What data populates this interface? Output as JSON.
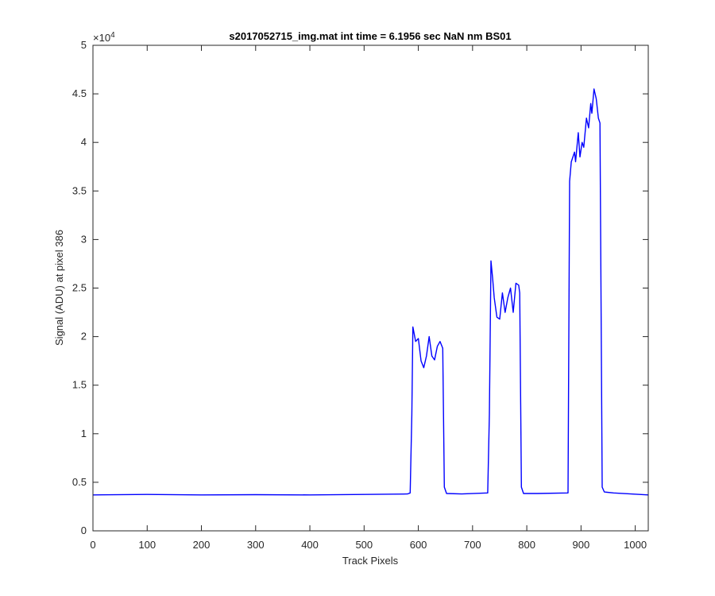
{
  "chart_data": {
    "type": "line",
    "title": "s2017052715_img.mat int time = 6.1956 sec  NaN nm BS01",
    "xlabel": "Track Pixels",
    "ylabel": "Signal (ADU) at pixel 386",
    "xlim": [
      0,
      1024
    ],
    "ylim": [
      0,
      50000
    ],
    "x_ticks": [
      0,
      100,
      200,
      300,
      400,
      500,
      600,
      700,
      800,
      900,
      1000
    ],
    "y_ticks": [
      0,
      0.5,
      1,
      1.5,
      2,
      2.5,
      3,
      3.5,
      4,
      4.5,
      5
    ],
    "y_exponent": "×10",
    "y_exponent_power": "4",
    "grid": false,
    "line_color": "#0000ff",
    "series": [
      {
        "x": [
          0,
          100,
          200,
          300,
          400,
          500,
          580,
          585,
          588,
          590,
          595,
          600,
          605,
          610,
          615,
          620,
          625,
          630,
          635,
          640,
          645,
          648,
          652,
          680,
          728,
          731,
          734,
          737,
          740,
          745,
          750,
          755,
          760,
          765,
          770,
          775,
          780,
          785,
          787,
          790,
          794,
          820,
          876,
          879,
          882,
          888,
          890,
          895,
          898,
          902,
          905,
          910,
          914,
          918,
          920,
          924,
          928,
          932,
          935,
          939,
          943,
          960,
          1024
        ],
        "y": [
          3700,
          3750,
          3700,
          3720,
          3700,
          3750,
          3800,
          3900,
          12000,
          21000,
          19500,
          19800,
          17500,
          16800,
          18000,
          20000,
          18000,
          17600,
          19000,
          19500,
          18800,
          4500,
          3850,
          3800,
          3900,
          12000,
          27800,
          26000,
          24000,
          22000,
          21800,
          24500,
          22500,
          24000,
          25000,
          22500,
          25500,
          25300,
          24500,
          4500,
          3850,
          3850,
          3900,
          36000,
          38000,
          39000,
          38000,
          41000,
          38500,
          40000,
          39500,
          42500,
          41500,
          44000,
          43000,
          45500,
          44500,
          42500,
          42000,
          4500,
          4000,
          3900,
          3700
        ]
      }
    ]
  }
}
